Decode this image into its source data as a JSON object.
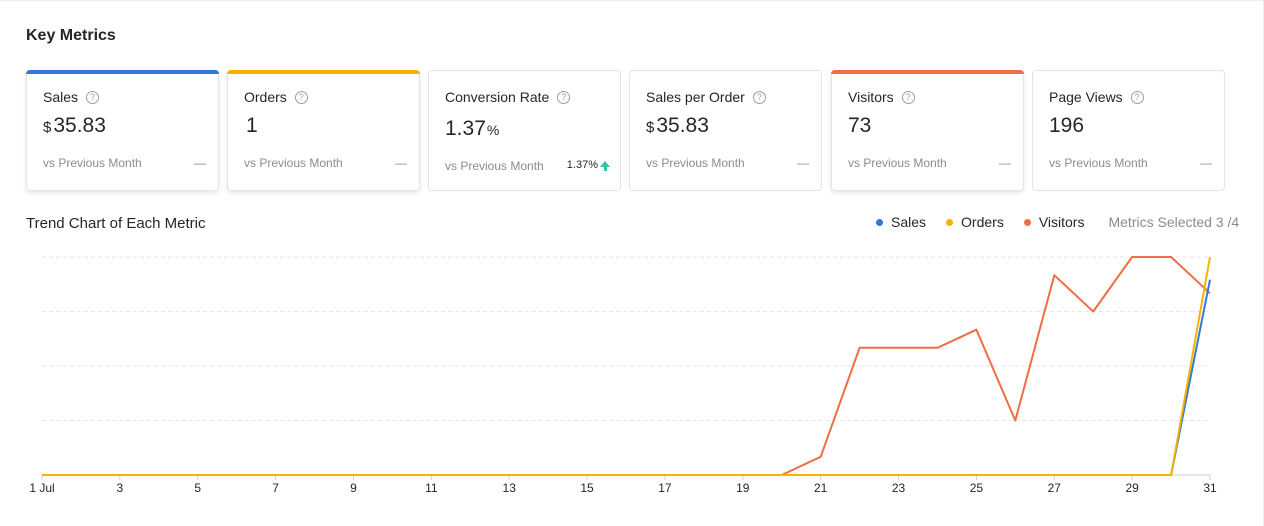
{
  "header": {
    "title": "Key Metrics"
  },
  "cards": [
    {
      "key": "sales",
      "label": "Sales",
      "currency": "$",
      "value": "35.83",
      "unit": "",
      "compare": "vs Previous Month",
      "change": "—",
      "accent": "#3478d6",
      "active": true
    },
    {
      "key": "orders",
      "label": "Orders",
      "currency": "",
      "value": "1",
      "unit": "",
      "compare": "vs Previous Month",
      "change": "—",
      "accent": "#f5b300",
      "active": true
    },
    {
      "key": "conversion",
      "label": "Conversion Rate",
      "currency": "",
      "value": "1.37",
      "unit": "%",
      "compare": "vs Previous Month",
      "change": "1.37%",
      "change_dir": "up",
      "accent": "",
      "active": false
    },
    {
      "key": "spo",
      "label": "Sales per Order",
      "currency": "$",
      "value": "35.83",
      "unit": "",
      "compare": "vs Previous Month",
      "change": "—",
      "accent": "",
      "active": false
    },
    {
      "key": "visitors",
      "label": "Visitors",
      "currency": "",
      "value": "73",
      "unit": "",
      "compare": "vs Previous Month",
      "change": "—",
      "accent": "#ef6e44",
      "active": true
    },
    {
      "key": "pageviews",
      "label": "Page Views",
      "currency": "",
      "value": "196",
      "unit": "",
      "compare": "vs Previous Month",
      "change": "—",
      "accent": "",
      "active": false
    }
  ],
  "trend": {
    "title": "Trend Chart of Each Metric",
    "metrics_selected_label": "Metrics Selected 3 /4"
  },
  "icons": {
    "help": "question-circle-icon",
    "change_up": "arrow-up-icon"
  },
  "chart_data": {
    "type": "line",
    "x": [
      1,
      2,
      3,
      4,
      5,
      6,
      7,
      8,
      9,
      10,
      11,
      12,
      13,
      14,
      15,
      16,
      17,
      18,
      19,
      20,
      21,
      22,
      23,
      24,
      25,
      26,
      27,
      28,
      29,
      30,
      31
    ],
    "x_tick_labels": [
      "1 Jul",
      "3",
      "5",
      "7",
      "9",
      "11",
      "13",
      "15",
      "17",
      "19",
      "21",
      "23",
      "25",
      "27",
      "29",
      "31"
    ],
    "x_tick_values": [
      1,
      3,
      5,
      7,
      9,
      11,
      13,
      15,
      17,
      19,
      21,
      23,
      25,
      27,
      29,
      31
    ],
    "legend_position": "top-right",
    "grid": "horizontal-dashed",
    "series": [
      {
        "name": "Sales",
        "color": "#3478d6",
        "ymax": 40,
        "values": [
          0,
          0,
          0,
          0,
          0,
          0,
          0,
          0,
          0,
          0,
          0,
          0,
          0,
          0,
          0,
          0,
          0,
          0,
          0,
          0,
          0,
          0,
          0,
          0,
          0,
          0,
          0,
          0,
          0,
          0,
          35.83
        ]
      },
      {
        "name": "Orders",
        "color": "#f5b300",
        "ymax": 1,
        "values": [
          0,
          0,
          0,
          0,
          0,
          0,
          0,
          0,
          0,
          0,
          0,
          0,
          0,
          0,
          0,
          0,
          0,
          0,
          0,
          0,
          0,
          0,
          0,
          0,
          0,
          0,
          0,
          0,
          0,
          0,
          1
        ]
      },
      {
        "name": "Visitors",
        "color": "#ef6e44",
        "ymax": 12,
        "values": [
          0,
          0,
          0,
          0,
          0,
          0,
          0,
          0,
          0,
          0,
          0,
          0,
          0,
          0,
          0,
          0,
          0,
          0,
          0,
          0,
          1,
          7,
          7,
          7,
          8,
          3,
          11,
          9,
          12,
          12,
          10
        ]
      }
    ]
  }
}
